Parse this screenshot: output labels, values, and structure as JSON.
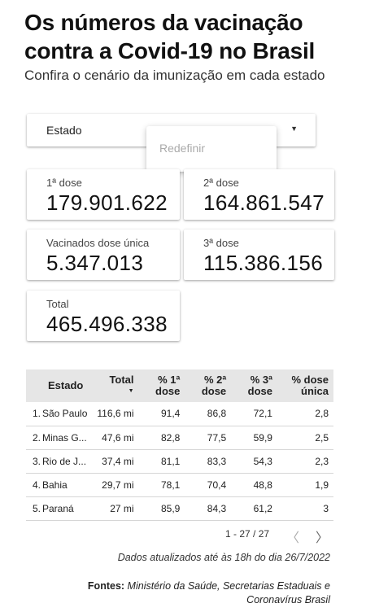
{
  "header": {
    "title": "Os números da vacinação contra a Covid-19 no Brasil",
    "subtitle": "Confira o cenário da imunização em cada estado"
  },
  "filter": {
    "label": "Estado",
    "reset_label": "Redefinir"
  },
  "kpis": {
    "dose1": {
      "label": "1ª dose",
      "value": "179.901.622"
    },
    "dose2": {
      "label": "2ª dose",
      "value": "164.861.547"
    },
    "single": {
      "label": "Vacinados dose única",
      "value": "5.347.013"
    },
    "dose3": {
      "label": "3ª dose",
      "value": "115.386.156"
    },
    "total": {
      "label": "Total",
      "value": "465.496.338"
    }
  },
  "table": {
    "headers": {
      "state": "Estado",
      "total": "Total",
      "pct1": "% 1ª dose",
      "pct2": "% 2ª dose",
      "pct3": "% 3ª dose",
      "pct_single": "% dose única"
    },
    "rows": [
      {
        "rank": "1.",
        "state": "São Paulo",
        "total": "116,6 mi",
        "pct1": "91,4",
        "pct2": "86,8",
        "pct3": "72,1",
        "pct_single": "2,8"
      },
      {
        "rank": "2.",
        "state": "Minas G...",
        "total": "47,6 mi",
        "pct1": "82,8",
        "pct2": "77,5",
        "pct3": "59,9",
        "pct_single": "2,5"
      },
      {
        "rank": "3.",
        "state": "Rio de J...",
        "total": "37,4 mi",
        "pct1": "81,1",
        "pct2": "83,3",
        "pct3": "54,3",
        "pct_single": "2,3"
      },
      {
        "rank": "4.",
        "state": "Bahia",
        "total": "29,7 mi",
        "pct1": "78,1",
        "pct2": "70,4",
        "pct3": "48,8",
        "pct_single": "1,9"
      },
      {
        "rank": "5.",
        "state": "Paraná",
        "total": "27 mi",
        "pct1": "85,9",
        "pct2": "84,3",
        "pct3": "61,2",
        "pct_single": "3"
      }
    ]
  },
  "pagination": {
    "text": "1 - 27 / 27"
  },
  "footer": {
    "updated": "Dados atualizados até às 18h do dia 26/7/2022",
    "sources_label": "Fontes:",
    "sources_text": "Ministério da Saúde, Secretarias Estaduais e Coronavírus Brasil"
  }
}
